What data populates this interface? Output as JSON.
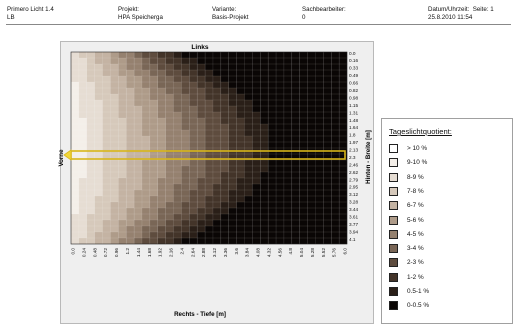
{
  "header": {
    "app": "Primero Licht 1.4",
    "app_sub": "LB",
    "projekt_label": "Projekt:",
    "projekt_value": "HPA Speicherga",
    "variante_label": "Variante:",
    "variante_value": "Basis-Projekt",
    "sachbearbeiter_label": "Sachbearbeiter:",
    "sachbearbeiter_value": "0",
    "datum_label": "Datum/Uhrzeit:",
    "seite_label": "Seite: 1",
    "datum_value": "25.8.2010 11:54"
  },
  "chart": {
    "title": "Links",
    "x_axis_label": "Rechts - Tiefe [m]",
    "right_axis_label": "Hinten - Breite [m]",
    "left_label": "Vorne"
  },
  "chart_data": {
    "type": "heatmap",
    "title": "Links",
    "xlabel": "Rechts - Tiefe [m]",
    "ylabel": "Hinten - Breite [m]",
    "left_side_label": "Vorne",
    "x_ticks": [
      "0.0",
      "0.24",
      "0.48",
      "0.72",
      "0.96",
      "1.2",
      "1.44",
      "1.68",
      "1.92",
      "2.16",
      "2.4",
      "2.64",
      "2.88",
      "3.12",
      "3.36",
      "3.6",
      "3.84",
      "4.08",
      "4.32",
      "4.56",
      "4.8",
      "5.04",
      "5.28",
      "5.52",
      "5.76",
      "6.0"
    ],
    "y_ticks": [
      "0.0",
      "0.16",
      "0.33",
      "0.49",
      "0.66",
      "0.82",
      "0.98",
      "1.15",
      "1.31",
      "1.48",
      "1.64",
      "1.8",
      "1.97",
      "2.13",
      "2.3",
      "2.46",
      "2.62",
      "2.79",
      "2.95",
      "3.12",
      "3.28",
      "3.44",
      "3.61",
      "3.77",
      "3.94",
      "4.1"
    ],
    "highlighted_row": "2.3",
    "columns": 35,
    "rows": 32,
    "legend_title": "Tageslichtquotient:",
    "legend": [
      {
        "label": "> 10 %",
        "color": "#ffffff"
      },
      {
        "label": "9-10 %",
        "color": "#f4efe9"
      },
      {
        "label": "8-9 %",
        "color": "#e6ddd3"
      },
      {
        "label": "7-8 %",
        "color": "#d6c9bb"
      },
      {
        "label": "6-7 %",
        "color": "#c4b3a3"
      },
      {
        "label": "5-6 %",
        "color": "#ae9b89"
      },
      {
        "label": "4-5 %",
        "color": "#95816f"
      },
      {
        "label": "3-4 %",
        "color": "#796656"
      },
      {
        "label": "2-3 %",
        "color": "#5e4c3e"
      },
      {
        "label": "1-2 %",
        "color": "#433429"
      },
      {
        "label": "0.5-1 %",
        "color": "#2a1f18"
      },
      {
        "label": "0-0.5 %",
        "color": "#0a0605"
      }
    ]
  }
}
